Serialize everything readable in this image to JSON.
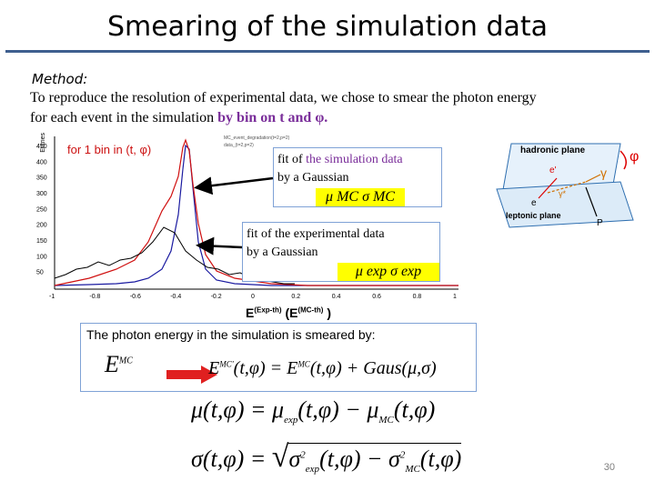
{
  "slide": {
    "title": "Smearing of the simulation data",
    "page_number": "30"
  },
  "method": {
    "label": "Method:",
    "line1": "To reproduce  the resolution of  experimental data, we chose to smear  the photon  energy",
    "line2_prefix": " for each event  in the simulation ",
    "line2_highlight": "by bin on  t and φ."
  },
  "plot": {
    "bin_label": "for 1 bin in (t, φ)",
    "y_axis_label": "Entries",
    "y_ticks": [
      "450",
      "400",
      "350",
      "300",
      "250",
      "200",
      "150",
      "100",
      "50"
    ],
    "x_ticks": [
      "-1",
      "-0.8",
      "-0.6",
      "-0.4",
      "-0.2",
      "0",
      "0.2",
      "0.4",
      "0.6",
      "0.8",
      "1"
    ],
    "legend": [
      "MC_event_degradation(t=2,p=2)",
      "data_(t=2,p=2)"
    ]
  },
  "callout_mc": {
    "line1_prefix": "fit of  ",
    "line1_highlight": "the simulation data",
    "line2": "by a Gaussian",
    "formula": "μ MC  σ MC"
  },
  "callout_exp": {
    "line1_prefix": "fit of  the ",
    "line1_highlight": "experimental",
    "line1_suffix": " data",
    "line2": "by a Gaussian",
    "formula": "μ exp  σ exp"
  },
  "x_axis_label": {
    "main": "E",
    "sup1": "(Exp-th)",
    "mid": " (E",
    "sup2": "(MC-th)",
    "end": " )"
  },
  "diagram": {
    "hadronic_plane": "hadronic plane",
    "leptonic_plane": "leptonic plane",
    "phi": "φ",
    "gamma": "γ",
    "e_prime": "e'",
    "e": "e",
    "gamma_star": "γ*",
    "p_label": "P"
  },
  "smear": {
    "sentence": "The photon energy in the simulation  is smeared by:",
    "lhs": "E",
    "lhs_sup": "MC",
    "eq": "E",
    "eq_sup": "MC'",
    "eq_args": "(t,φ) = E",
    "eq_sup2": "MC",
    "eq_rest": "(t,φ) + Gaus(μ,σ)"
  },
  "formulas": {
    "mu_line": "μ(t,φ) = μ",
    "mu_sub1": "exp",
    "mu_mid": "(t,φ) − μ",
    "mu_sub2": "MC",
    "mu_end": "(t,φ)",
    "sigma_lhs": "σ(t,φ) =",
    "sigma_body": "σ",
    "sigma_sup1": "2",
    "sigma_sub1": "exp",
    "sigma_mid": "(t,φ) − σ",
    "sigma_sup2": "2",
    "sigma_sub2": "MC",
    "sigma_end": "(t,φ)"
  },
  "colors": {
    "accent_purple": "#7a2e9a",
    "highlight_yellow": "#ffff00",
    "rule_blue": "#3f5f8f",
    "callout_border": "#7fa2d6",
    "mc_curve": "#1a1aa0",
    "data_curve": "#d01010",
    "arrow_red": "#e02020"
  }
}
